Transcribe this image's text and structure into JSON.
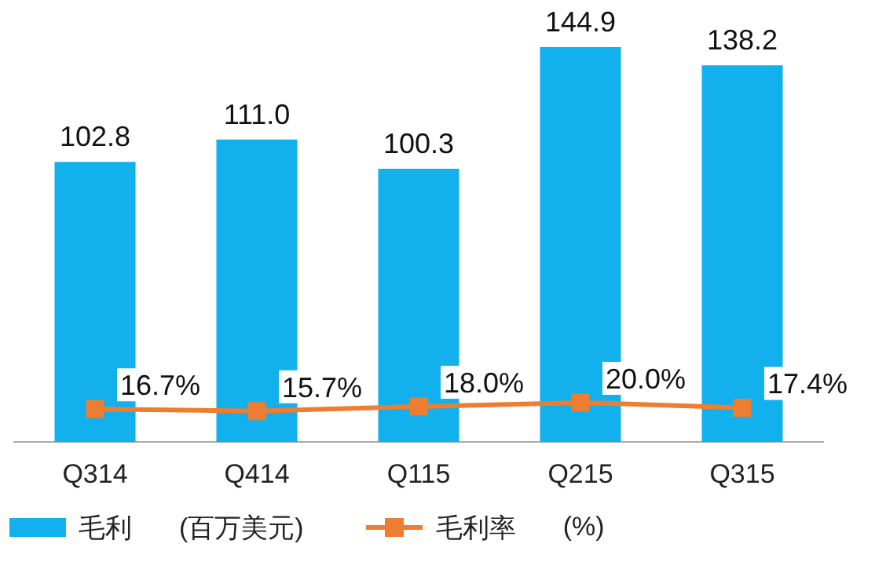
{
  "chart_data": {
    "type": "bar",
    "categories": [
      "Q314",
      "Q414",
      "Q115",
      "Q215",
      "Q315"
    ],
    "annotations": [
      "(百万美元)",
      "(%)"
    ],
    "legend": "bottom",
    "grid": false,
    "series": [
      {
        "name": "毛利",
        "color": "#12b0ec",
        "values": [
          102.8,
          111.0,
          100.3,
          144.9,
          138.2
        ],
        "value_labels": [
          "102.8",
          "111.0",
          "100.3",
          "144.9",
          "138.2"
        ]
      },
      {
        "name": "毛利率",
        "type": "line",
        "axis": "y2",
        "color": "#ed7d31",
        "marker": "square",
        "line_style": "solid",
        "values": [
          16.7,
          15.7,
          18.0,
          20.0,
          17.4
        ],
        "value_labels": [
          "16.7%",
          "15.7%",
          "18.0%",
          "20.0%",
          "17.4%"
        ]
      }
    ]
  }
}
